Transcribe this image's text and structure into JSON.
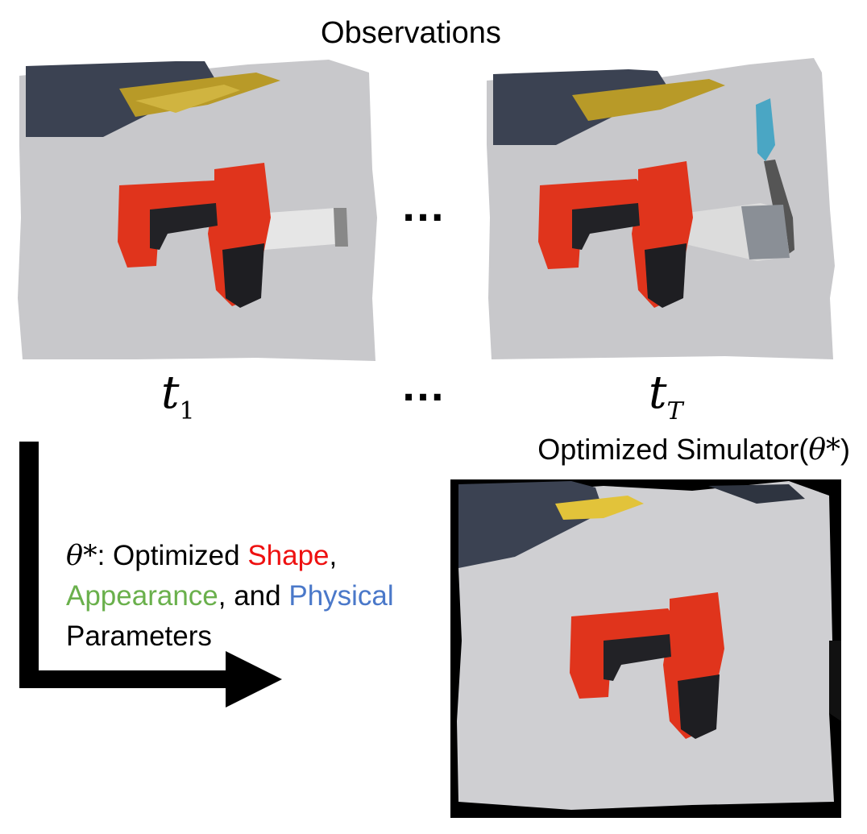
{
  "title": "Observations",
  "labels": {
    "t_first_var": "t",
    "t_first_sub": "1",
    "t_last_var": "t",
    "t_last_sub": "T",
    "ellipsis_top": "…",
    "ellipsis_bottom": "…"
  },
  "simulator": {
    "title_prefix": "Optimized Simulator(",
    "title_theta": "θ*",
    "title_suffix": ")"
  },
  "description": {
    "theta": "θ*",
    "part1": ": Optimized ",
    "shape": "Shape",
    "comma": ",",
    "appearance": "Appearance",
    "part2": ", and ",
    "physical": "Physical",
    "parameters": "Parameters"
  },
  "colors": {
    "shape": "#ee1111",
    "appearance": "#6ab04c",
    "physical": "#4a78c9"
  }
}
